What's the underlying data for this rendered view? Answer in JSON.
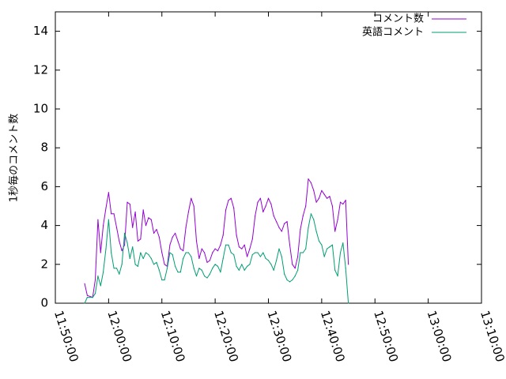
{
  "chart_data": {
    "type": "line",
    "title": "",
    "xlabel": "",
    "ylabel": "1秒毎のコメント数",
    "x_ticks": [
      "11:50:00",
      "12:00:00",
      "12:10:00",
      "12:20:00",
      "12:30:00",
      "12:40:00",
      "12:50:00",
      "13:00:00",
      "13:10:00"
    ],
    "x_range": [
      "11:50:00",
      "13:10:00"
    ],
    "y_ticks": [
      "0",
      "2",
      "4",
      "6",
      "8",
      "10",
      "12",
      "14"
    ],
    "ylim": [
      0,
      15
    ],
    "grid": false,
    "legend_position": "top-right",
    "series": [
      {
        "name": "コメント数",
        "color": "#9400d3",
        "points": [
          [
            "11:55:30",
            1.0
          ],
          [
            "11:56:00",
            0.4
          ],
          [
            "11:57:00",
            0.3
          ],
          [
            "11:57:30",
            1.2
          ],
          [
            "11:58:00",
            4.3
          ],
          [
            "11:58:30",
            2.6
          ],
          [
            "11:59:00",
            4.0
          ],
          [
            "11:59:30",
            4.9
          ],
          [
            "12:00:00",
            5.7
          ],
          [
            "12:00:30",
            4.6
          ],
          [
            "12:01:00",
            4.6
          ],
          [
            "12:01:30",
            3.9
          ],
          [
            "12:02:00",
            3.2
          ],
          [
            "12:02:30",
            2.7
          ],
          [
            "12:03:00",
            3.0
          ],
          [
            "12:03:30",
            5.2
          ],
          [
            "12:04:00",
            5.1
          ],
          [
            "12:04:30",
            3.9
          ],
          [
            "12:05:00",
            4.7
          ],
          [
            "12:05:30",
            3.2
          ],
          [
            "12:06:00",
            3.3
          ],
          [
            "12:06:30",
            4.8
          ],
          [
            "12:07:00",
            4.0
          ],
          [
            "12:07:30",
            4.4
          ],
          [
            "12:08:00",
            4.3
          ],
          [
            "12:08:30",
            3.6
          ],
          [
            "12:09:00",
            3.8
          ],
          [
            "12:09:30",
            3.4
          ],
          [
            "12:10:00",
            2.6
          ],
          [
            "12:10:30",
            2.0
          ],
          [
            "12:11:00",
            1.9
          ],
          [
            "12:11:30",
            3.0
          ],
          [
            "12:12:00",
            3.4
          ],
          [
            "12:12:30",
            3.6
          ],
          [
            "12:13:00",
            3.2
          ],
          [
            "12:13:30",
            2.8
          ],
          [
            "12:14:00",
            2.7
          ],
          [
            "12:14:30",
            3.9
          ],
          [
            "12:15:00",
            4.7
          ],
          [
            "12:15:30",
            5.4
          ],
          [
            "12:16:00",
            5.0
          ],
          [
            "12:16:30",
            3.2
          ],
          [
            "12:17:00",
            2.3
          ],
          [
            "12:17:30",
            2.8
          ],
          [
            "12:18:00",
            2.6
          ],
          [
            "12:18:30",
            2.1
          ],
          [
            "12:19:00",
            2.2
          ],
          [
            "12:19:30",
            2.6
          ],
          [
            "12:20:00",
            2.8
          ],
          [
            "12:20:30",
            2.7
          ],
          [
            "12:21:00",
            3.0
          ],
          [
            "12:21:30",
            3.5
          ],
          [
            "12:22:00",
            4.8
          ],
          [
            "12:22:30",
            5.3
          ],
          [
            "12:23:00",
            5.4
          ],
          [
            "12:23:30",
            4.9
          ],
          [
            "12:24:00",
            3.5
          ],
          [
            "12:24:30",
            2.9
          ],
          [
            "12:25:00",
            2.8
          ],
          [
            "12:25:30",
            3.0
          ],
          [
            "12:26:00",
            2.4
          ],
          [
            "12:26:30",
            2.8
          ],
          [
            "12:27:00",
            3.3
          ],
          [
            "12:27:30",
            4.5
          ],
          [
            "12:28:00",
            5.2
          ],
          [
            "12:28:30",
            5.4
          ],
          [
            "12:29:00",
            4.7
          ],
          [
            "12:29:30",
            5.0
          ],
          [
            "12:30:00",
            5.4
          ],
          [
            "12:30:30",
            5.1
          ],
          [
            "12:31:00",
            4.5
          ],
          [
            "12:31:30",
            4.2
          ],
          [
            "12:32:00",
            3.9
          ],
          [
            "12:32:30",
            3.7
          ],
          [
            "12:33:00",
            4.1
          ],
          [
            "12:33:30",
            4.2
          ],
          [
            "12:34:00",
            3.0
          ],
          [
            "12:34:30",
            2.0
          ],
          [
            "12:35:00",
            1.8
          ],
          [
            "12:35:30",
            2.4
          ],
          [
            "12:36:00",
            3.8
          ],
          [
            "12:36:30",
            4.5
          ],
          [
            "12:37:00",
            5.0
          ],
          [
            "12:37:30",
            6.4
          ],
          [
            "12:38:00",
            6.2
          ],
          [
            "12:38:30",
            5.8
          ],
          [
            "12:39:00",
            5.2
          ],
          [
            "12:39:30",
            5.4
          ],
          [
            "12:40:00",
            5.8
          ],
          [
            "12:40:30",
            5.6
          ],
          [
            "12:41:00",
            5.4
          ],
          [
            "12:41:30",
            5.5
          ],
          [
            "12:42:00",
            5.0
          ],
          [
            "12:42:30",
            3.7
          ],
          [
            "12:43:00",
            4.3
          ],
          [
            "12:43:30",
            5.2
          ],
          [
            "12:44:00",
            5.1
          ],
          [
            "12:44:30",
            5.3
          ],
          [
            "12:45:00",
            2.0
          ]
        ]
      },
      {
        "name": "英語コメント",
        "color": "#009e73",
        "points": [
          [
            "11:55:30",
            0.0
          ],
          [
            "11:56:00",
            0.3
          ],
          [
            "11:57:00",
            0.3
          ],
          [
            "11:57:30",
            0.5
          ],
          [
            "11:58:00",
            1.4
          ],
          [
            "11:58:30",
            0.9
          ],
          [
            "11:59:00",
            1.6
          ],
          [
            "11:59:30",
            2.8
          ],
          [
            "12:00:00",
            4.3
          ],
          [
            "12:00:30",
            2.6
          ],
          [
            "12:01:00",
            1.8
          ],
          [
            "12:01:30",
            1.8
          ],
          [
            "12:02:00",
            1.5
          ],
          [
            "12:02:30",
            2.0
          ],
          [
            "12:03:00",
            3.6
          ],
          [
            "12:03:30",
            3.1
          ],
          [
            "12:04:00",
            2.3
          ],
          [
            "12:04:30",
            2.9
          ],
          [
            "12:05:00",
            2.0
          ],
          [
            "12:05:30",
            1.9
          ],
          [
            "12:06:00",
            2.6
          ],
          [
            "12:06:30",
            2.3
          ],
          [
            "12:07:00",
            2.6
          ],
          [
            "12:07:30",
            2.5
          ],
          [
            "12:08:00",
            2.3
          ],
          [
            "12:08:30",
            2.0
          ],
          [
            "12:09:00",
            2.1
          ],
          [
            "12:09:30",
            1.7
          ],
          [
            "12:10:00",
            1.2
          ],
          [
            "12:10:30",
            1.2
          ],
          [
            "12:11:00",
            1.8
          ],
          [
            "12:11:30",
            2.6
          ],
          [
            "12:12:00",
            2.5
          ],
          [
            "12:12:30",
            1.9
          ],
          [
            "12:13:00",
            1.6
          ],
          [
            "12:13:30",
            1.6
          ],
          [
            "12:14:00",
            2.3
          ],
          [
            "12:14:30",
            2.6
          ],
          [
            "12:15:00",
            2.6
          ],
          [
            "12:15:30",
            2.4
          ],
          [
            "12:16:00",
            1.8
          ],
          [
            "12:16:30",
            1.4
          ],
          [
            "12:17:00",
            1.8
          ],
          [
            "12:17:30",
            1.7
          ],
          [
            "12:18:00",
            1.4
          ],
          [
            "12:18:30",
            1.3
          ],
          [
            "12:19:00",
            1.5
          ],
          [
            "12:19:30",
            1.8
          ],
          [
            "12:20:00",
            2.0
          ],
          [
            "12:20:30",
            1.9
          ],
          [
            "12:21:00",
            1.6
          ],
          [
            "12:21:30",
            2.3
          ],
          [
            "12:22:00",
            3.0
          ],
          [
            "12:22:30",
            3.0
          ],
          [
            "12:23:00",
            2.6
          ],
          [
            "12:23:30",
            2.5
          ],
          [
            "12:24:00",
            1.9
          ],
          [
            "12:24:30",
            1.7
          ],
          [
            "12:25:00",
            2.0
          ],
          [
            "12:25:30",
            1.7
          ],
          [
            "12:26:00",
            1.9
          ],
          [
            "12:26:30",
            2.0
          ],
          [
            "12:27:00",
            2.5
          ],
          [
            "12:27:30",
            2.6
          ],
          [
            "12:28:00",
            2.6
          ],
          [
            "12:28:30",
            2.4
          ],
          [
            "12:29:00",
            2.6
          ],
          [
            "12:29:30",
            2.3
          ],
          [
            "12:30:00",
            2.2
          ],
          [
            "12:30:30",
            2.0
          ],
          [
            "12:31:00",
            1.7
          ],
          [
            "12:31:30",
            2.2
          ],
          [
            "12:32:00",
            2.8
          ],
          [
            "12:32:30",
            2.4
          ],
          [
            "12:33:00",
            1.5
          ],
          [
            "12:33:30",
            1.2
          ],
          [
            "12:34:00",
            1.1
          ],
          [
            "12:34:30",
            1.2
          ],
          [
            "12:35:00",
            1.4
          ],
          [
            "12:35:30",
            1.7
          ],
          [
            "12:36:00",
            2.6
          ],
          [
            "12:36:30",
            2.6
          ],
          [
            "12:37:00",
            2.8
          ],
          [
            "12:37:30",
            3.9
          ],
          [
            "12:38:00",
            4.6
          ],
          [
            "12:38:30",
            4.3
          ],
          [
            "12:39:00",
            3.7
          ],
          [
            "12:39:30",
            3.2
          ],
          [
            "12:40:00",
            3.0
          ],
          [
            "12:40:30",
            2.4
          ],
          [
            "12:41:00",
            2.8
          ],
          [
            "12:41:30",
            2.9
          ],
          [
            "12:42:00",
            3.0
          ],
          [
            "12:42:30",
            1.7
          ],
          [
            "12:43:00",
            1.4
          ],
          [
            "12:43:30",
            2.6
          ],
          [
            "12:44:00",
            3.1
          ],
          [
            "12:44:30",
            1.8
          ],
          [
            "12:45:00",
            0.0
          ]
        ]
      }
    ]
  }
}
